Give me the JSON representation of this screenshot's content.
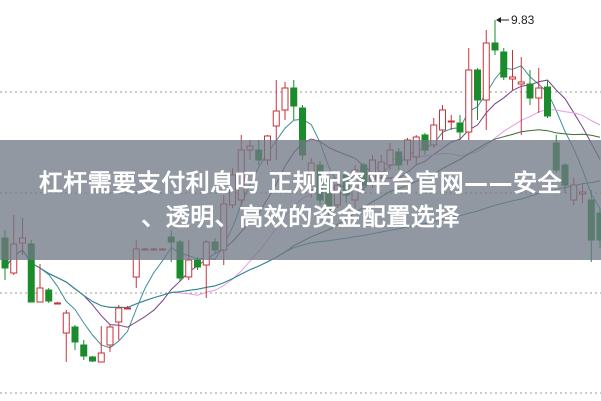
{
  "headline": {
    "line1": "杠杆需要支付利息吗 正规配资平台官网——安全",
    "line2": "、透明、高效的资金配置选择"
  },
  "chart_data": {
    "type": "candlestick",
    "title": "",
    "xlabel": "",
    "ylabel": "",
    "ylim": [
      6.02,
      10.03
    ],
    "grid": true,
    "gridlines": [
      9.11,
      8.1,
      7.1,
      6.1
    ],
    "peak_label": "9.83",
    "colors": {
      "up": "#c8323a",
      "down": "#1b8c2b",
      "ma5": "#3a8f96",
      "ma10": "#7a3f86",
      "ma20": "#e39be6",
      "ma30": "#3d6b2e",
      "ma60": "#2f8fa0",
      "grid": "#999999"
    },
    "ma_periods": [
      5,
      10,
      20,
      30,
      60
    ],
    "candles": [
      [
        7.65,
        7.35,
        7.73,
        7.23
      ],
      [
        7.3,
        7.59,
        7.88,
        7.28
      ],
      [
        7.6,
        7.65,
        7.85,
        7.48
      ],
      [
        7.59,
        7.01,
        7.63,
        7.01
      ],
      [
        7.01,
        7.15,
        7.39,
        7.01
      ],
      [
        7.13,
        7.02,
        7.15,
        7.0
      ],
      [
        7.0,
        7.0,
        7.01,
        6.99
      ],
      [
        6.7,
        6.9,
        6.93,
        6.41
      ],
      [
        6.76,
        6.61,
        6.78,
        6.53
      ],
      [
        6.58,
        6.47,
        6.63,
        6.43
      ],
      [
        6.46,
        6.42,
        6.47,
        6.41
      ],
      [
        6.41,
        6.5,
        6.77,
        6.41
      ],
      [
        6.58,
        6.76,
        6.78,
        6.51
      ],
      [
        6.81,
        6.95,
        6.98,
        6.63
      ],
      [
        6.95,
        6.95,
        6.97,
        6.94
      ],
      [
        7.26,
        7.54,
        7.63,
        7.15
      ],
      [
        7.54,
        7.54,
        7.55,
        7.53
      ],
      [
        7.54,
        7.54,
        7.55,
        7.53
      ],
      [
        7.54,
        7.54,
        7.55,
        7.53
      ],
      [
        7.66,
        7.61,
        7.73,
        7.41
      ],
      [
        7.61,
        7.25,
        7.63,
        7.22
      ],
      [
        7.26,
        7.43,
        7.63,
        7.23
      ],
      [
        7.43,
        7.36,
        7.46,
        7.33
      ],
      [
        7.38,
        7.61,
        7.63,
        7.05
      ],
      [
        7.61,
        7.53,
        7.65,
        7.5
      ],
      [
        7.53,
        7.99,
        8.08,
        7.38
      ],
      [
        7.98,
        8.28,
        8.35,
        7.95
      ],
      [
        8.03,
        8.53,
        8.68,
        7.98
      ],
      [
        8.53,
        8.57,
        8.63,
        8.43
      ],
      [
        8.53,
        8.43,
        8.63,
        8.38
      ],
      [
        8.43,
        8.67,
        8.68,
        8.38
      ],
      [
        8.77,
        8.92,
        9.23,
        8.43
      ],
      [
        8.93,
        9.15,
        9.21,
        8.83
      ],
      [
        9.15,
        8.97,
        9.23,
        8.83
      ],
      [
        8.95,
        8.48,
        8.98,
        8.43
      ],
      [
        8.13,
        8.4,
        8.45,
        8.05
      ],
      [
        8.38,
        8.03,
        8.42,
        7.98
      ],
      [
        8.23,
        7.93,
        8.25,
        7.85
      ],
      [
        7.98,
        8.18,
        8.25,
        7.95
      ],
      [
        8.28,
        8.08,
        8.3,
        8.0
      ],
      [
        8.03,
        8.33,
        8.38,
        7.95
      ],
      [
        8.38,
        8.18,
        8.4,
        8.1
      ],
      [
        8.23,
        8.43,
        8.48,
        8.15
      ],
      [
        8.31,
        8.41,
        8.48,
        8.25
      ],
      [
        8.38,
        8.53,
        8.6,
        8.33
      ],
      [
        8.51,
        8.38,
        8.55,
        8.33
      ],
      [
        8.43,
        8.63,
        8.65,
        8.38
      ],
      [
        8.46,
        8.66,
        8.68,
        8.38
      ],
      [
        8.68,
        8.53,
        8.7,
        8.48
      ],
      [
        8.58,
        8.78,
        8.85,
        8.55
      ],
      [
        8.73,
        8.93,
        8.98,
        8.63
      ],
      [
        8.82,
        8.82,
        8.88,
        8.73
      ],
      [
        8.8,
        8.71,
        8.88,
        8.63
      ],
      [
        8.71,
        9.33,
        9.55,
        8.63
      ],
      [
        9.33,
        9.03,
        9.35,
        8.83
      ],
      [
        9.03,
        9.6,
        9.73,
        8.73
      ],
      [
        9.6,
        9.53,
        9.83,
        9.48
      ],
      [
        9.51,
        9.26,
        9.55,
        9.23
      ],
      [
        9.24,
        9.26,
        9.53,
        9.13
      ],
      [
        9.19,
        9.21,
        9.46,
        8.68
      ],
      [
        9.19,
        9.05,
        9.33,
        8.98
      ],
      [
        9.05,
        9.15,
        9.35,
        8.9
      ],
      [
        9.16,
        8.87,
        9.23,
        8.85
      ],
      [
        8.6,
        8.33,
        8.68,
        8.3
      ],
      [
        8.38,
        8.18,
        8.4,
        8.1
      ],
      [
        8.03,
        8.18,
        8.25,
        7.98
      ],
      [
        8.09,
        8.11,
        8.2,
        8.0
      ],
      [
        8.03,
        7.63,
        8.13,
        7.41
      ],
      [
        7.9,
        7.63,
        7.95,
        7.55
      ]
    ]
  }
}
